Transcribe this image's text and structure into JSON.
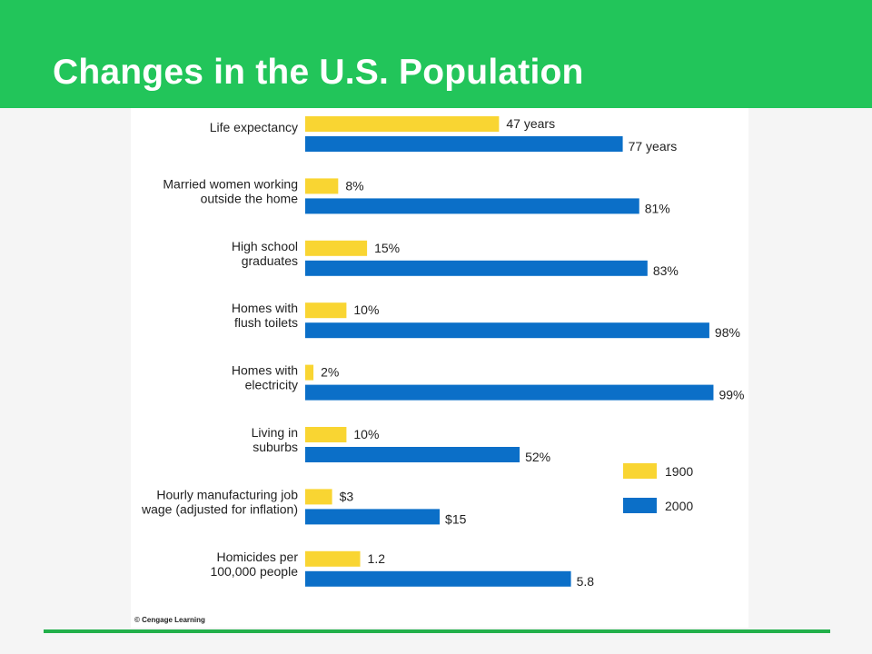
{
  "slide": {
    "title": "Changes in the U.S. Population",
    "credit": "© Cengage Learning"
  },
  "colors": {
    "header": "#22c55a",
    "bar_1900": "#f9d532",
    "bar_2000": "#0b6fc8",
    "rule": "#22b04a"
  },
  "chart_data": {
    "type": "bar",
    "orientation": "horizontal",
    "legend_position": "right",
    "grid": false,
    "series": [
      {
        "name": "1900",
        "color": "#f9d532"
      },
      {
        "name": "2000",
        "color": "#0b6fc8"
      }
    ],
    "categories": [
      {
        "label": [
          "Life expectancy"
        ],
        "v1900": 47,
        "v2000": 77,
        "l1900": "47 years",
        "l2000": "77 years",
        "scale": 100
      },
      {
        "label": [
          "Married women working",
          "outside the home"
        ],
        "v1900": 8,
        "v2000": 81,
        "l1900": "8%",
        "l2000": "81%",
        "scale": 100
      },
      {
        "label": [
          "High school",
          "graduates"
        ],
        "v1900": 15,
        "v2000": 83,
        "l1900": "15%",
        "l2000": "83%",
        "scale": 100
      },
      {
        "label": [
          "Homes with",
          "flush toilets"
        ],
        "v1900": 10,
        "v2000": 98,
        "l1900": "10%",
        "l2000": "98%",
        "scale": 100
      },
      {
        "label": [
          "Homes with",
          "electricity"
        ],
        "v1900": 2,
        "v2000": 99,
        "l1900": "2%",
        "l2000": "99%",
        "scale": 100
      },
      {
        "label": [
          "Living in",
          "suburbs"
        ],
        "v1900": 10,
        "v2000": 52,
        "l1900": "10%",
        "l2000": "52%",
        "scale": 100
      },
      {
        "label": [
          "Hourly manufacturing job",
          "wage (adjusted for inflation)"
        ],
        "v1900": 3,
        "v2000": 15,
        "l1900": "$3",
        "l2000": "$15",
        "scale": 46
      },
      {
        "label": [
          "Homicides per",
          "100,000 people"
        ],
        "v1900": 1.2,
        "v2000": 5.8,
        "l1900": "1.2",
        "l2000": "5.8",
        "scale": 9
      }
    ]
  }
}
